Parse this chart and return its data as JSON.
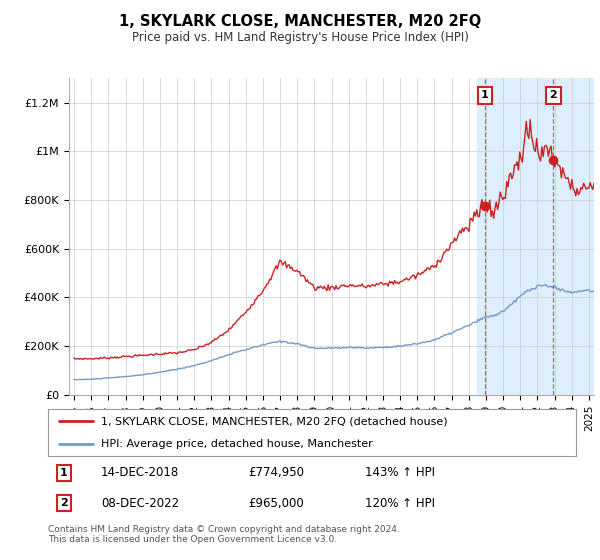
{
  "title": "1, SKYLARK CLOSE, MANCHESTER, M20 2FQ",
  "subtitle": "Price paid vs. HM Land Registry's House Price Index (HPI)",
  "line1_label": "1, SKYLARK CLOSE, MANCHESTER, M20 2FQ (detached house)",
  "line2_label": "HPI: Average price, detached house, Manchester",
  "line1_color": "#cc2222",
  "line2_color": "#7799cc",
  "dot_color": "#cc2222",
  "bg_highlight_color": "#ddeeff",
  "annotation1_date": "14-DEC-2018",
  "annotation1_price": "£774,950",
  "annotation1_hpi": "143% ↑ HPI",
  "annotation2_date": "08-DEC-2022",
  "annotation2_price": "£965,000",
  "annotation2_hpi": "120% ↑ HPI",
  "footer": "Contains HM Land Registry data © Crown copyright and database right 2024.\nThis data is licensed under the Open Government Licence v3.0.",
  "ylim": [
    0,
    1300000
  ],
  "yticks": [
    0,
    200000,
    400000,
    600000,
    800000,
    1000000,
    1200000
  ],
  "ytick_labels": [
    "£0",
    "£200K",
    "£400K",
    "£600K",
    "£800K",
    "£1M",
    "£1.2M"
  ],
  "sale1_x": 2018.95,
  "sale1_y": 774950,
  "sale2_x": 2022.93,
  "sale2_y": 965000,
  "xmin": 1995,
  "xmax": 2025.3,
  "highlight_start": 2018.5,
  "red_waypoints_x": [
    1995,
    1996,
    1997,
    1998,
    1999,
    2000,
    2001,
    2002,
    2003,
    2004,
    2005,
    2006,
    2007,
    2008,
    2009,
    2010,
    2011,
    2012,
    2013,
    2014,
    2015,
    2016,
    2017,
    2018,
    2018.95,
    2019,
    2019.5,
    2020,
    2020.5,
    2021,
    2021.3,
    2021.5,
    2021.7,
    2022,
    2022.2,
    2022.5,
    2022.93,
    2023,
    2023.3,
    2023.8,
    2024,
    2024.5,
    2025,
    2025.3
  ],
  "red_waypoints_y": [
    148000,
    148000,
    152000,
    157000,
    162000,
    168000,
    172000,
    185000,
    215000,
    265000,
    340000,
    430000,
    545000,
    510000,
    440000,
    440000,
    450000,
    445000,
    455000,
    465000,
    490000,
    530000,
    620000,
    700000,
    774950,
    780000,
    760000,
    830000,
    900000,
    980000,
    1060000,
    1090000,
    1050000,
    1010000,
    970000,
    1020000,
    965000,
    970000,
    940000,
    870000,
    860000,
    840000,
    860000,
    850000
  ],
  "blue_waypoints_x": [
    1995,
    1996,
    1997,
    1998,
    1999,
    2000,
    2001,
    2002,
    2003,
    2004,
    2005,
    2006,
    2007,
    2008,
    2009,
    2010,
    2011,
    2012,
    2013,
    2014,
    2015,
    2016,
    2017,
    2018,
    2019,
    2019.5,
    2020,
    2020.5,
    2021,
    2021.5,
    2022,
    2022.5,
    2023,
    2023.5,
    2024,
    2024.5,
    2025,
    2025.3
  ],
  "blue_waypoints_y": [
    62000,
    64000,
    69000,
    75000,
    82000,
    93000,
    105000,
    120000,
    140000,
    165000,
    185000,
    205000,
    220000,
    210000,
    190000,
    192000,
    195000,
    192000,
    195000,
    200000,
    210000,
    225000,
    255000,
    285000,
    320000,
    325000,
    345000,
    370000,
    405000,
    430000,
    445000,
    450000,
    440000,
    430000,
    420000,
    425000,
    430000,
    425000
  ]
}
